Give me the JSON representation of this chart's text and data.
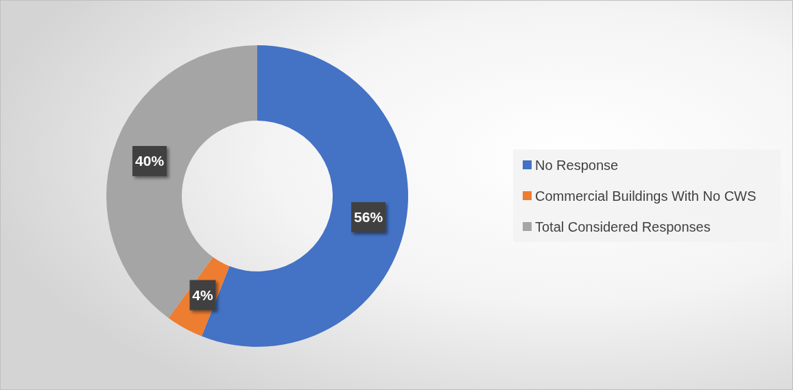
{
  "chart_data": {
    "type": "donut",
    "categories": [
      "No Response",
      "Commercial Buildings With No CWS",
      "Total Considered Responses"
    ],
    "values": [
      56,
      4,
      40
    ],
    "colors": [
      "#4472c4",
      "#ed7d31",
      "#a5a5a5"
    ],
    "value_labels": [
      "56%",
      "4%",
      "40%"
    ],
    "legend": "right"
  }
}
